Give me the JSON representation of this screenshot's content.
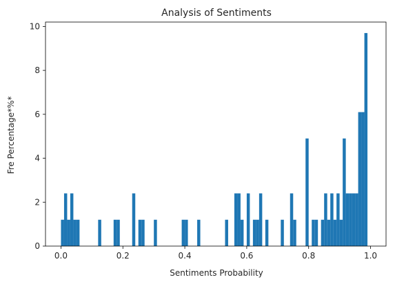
{
  "chart_data": {
    "type": "bar",
    "title": "Analysis of Sentiments",
    "xlabel": "Sentiments Probability",
    "ylabel": "Fre Percentage*%*",
    "xlim": [
      -0.05,
      1.05
    ],
    "ylim": [
      0,
      10.2
    ],
    "x_ticks": [
      0.0,
      0.2,
      0.4,
      0.6,
      0.8,
      1.0
    ],
    "x_tick_labels": [
      "0.0",
      "0.2",
      "0.4",
      "0.6",
      "0.8",
      "1.0"
    ],
    "y_ticks": [
      0,
      2,
      4,
      6,
      8,
      10
    ],
    "y_tick_labels": [
      "0",
      "2",
      "4",
      "6",
      "8",
      "10"
    ],
    "bin_width": 0.01,
    "bar_color": "#1f77b4",
    "grid": false,
    "series": [
      {
        "bin_starts": [
          0.0,
          0.01,
          0.02,
          0.03,
          0.04,
          0.05,
          0.12,
          0.17,
          0.18,
          0.23,
          0.25,
          0.26,
          0.3,
          0.39,
          0.4,
          0.44,
          0.53,
          0.56,
          0.57,
          0.58,
          0.6,
          0.62,
          0.63,
          0.64,
          0.66,
          0.71,
          0.74,
          0.75,
          0.79,
          0.81,
          0.82,
          0.84,
          0.85,
          0.86,
          0.87,
          0.88,
          0.89,
          0.9,
          0.91,
          0.92,
          0.93,
          0.94,
          0.95,
          0.96,
          0.97,
          0.98
        ],
        "values": [
          1.2,
          2.4,
          1.2,
          2.4,
          1.2,
          1.2,
          1.2,
          1.2,
          1.2,
          2.4,
          1.2,
          1.2,
          1.2,
          1.2,
          1.2,
          1.2,
          1.2,
          2.4,
          2.4,
          1.2,
          2.4,
          1.2,
          1.2,
          2.4,
          1.2,
          1.2,
          2.4,
          1.2,
          4.9,
          1.2,
          1.2,
          1.2,
          2.4,
          1.2,
          2.4,
          1.2,
          2.4,
          1.2,
          4.9,
          2.4,
          2.4,
          2.4,
          2.4,
          6.1,
          6.1,
          9.7
        ]
      }
    ]
  }
}
